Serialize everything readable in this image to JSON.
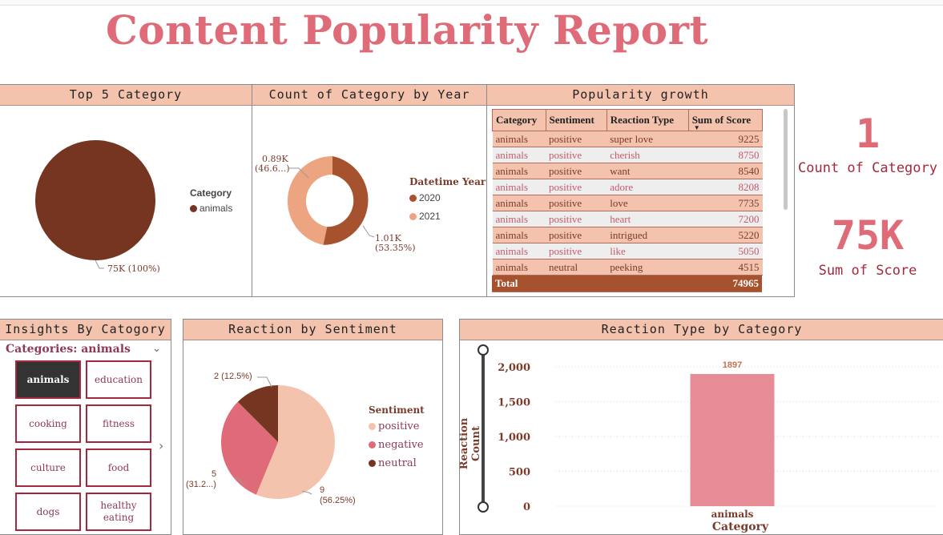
{
  "report": {
    "title": "Content Popularity Report"
  },
  "top5": {
    "header": "Top 5 Category",
    "legend_title": "Category",
    "legend_items": [
      {
        "label": "animals",
        "color": "#763521"
      }
    ],
    "slice_label": "75K (100%)"
  },
  "by_year": {
    "header": "Count of Category by Year",
    "legend_title": "Datetime Year",
    "legend_items": [
      {
        "label": "2020",
        "color": "#a6522e"
      },
      {
        "label": "2021",
        "color": "#eda581"
      }
    ],
    "label_2021_a": "0.89K",
    "label_2021_b": "(46.6...)",
    "label_2020_a": "1.01K",
    "label_2020_b": "(53.35%)"
  },
  "growth": {
    "header": "Popularity growth",
    "columns": [
      "Category",
      "Sentiment",
      "Reaction Type",
      "Sum of Score"
    ],
    "rows": [
      [
        "animals",
        "positive",
        "super love",
        "9225"
      ],
      [
        "animals",
        "positive",
        "cherish",
        "8750"
      ],
      [
        "animals",
        "positive",
        "want",
        "8540"
      ],
      [
        "animals",
        "positive",
        "adore",
        "8208"
      ],
      [
        "animals",
        "positive",
        "love",
        "7735"
      ],
      [
        "animals",
        "positive",
        "heart",
        "7200"
      ],
      [
        "animals",
        "positive",
        "intrigued",
        "5220"
      ],
      [
        "animals",
        "positive",
        "like",
        "5050"
      ],
      [
        "animals",
        "neutral",
        "peeking",
        "4515"
      ]
    ],
    "total_label": "Total",
    "total_value": "74965"
  },
  "kpis": {
    "count_value": "1",
    "count_label": "Count of Category",
    "sum_value": "75K",
    "sum_label": "Sum of Score"
  },
  "insights": {
    "header": "Insights By Catogory",
    "filter_label": "Categories: animals",
    "tiles": [
      "animals",
      "education",
      "cooking",
      "fitness",
      "culture",
      "food",
      "dogs",
      "healthy eating"
    ],
    "selected": "animals"
  },
  "sentiment": {
    "header": "Reaction by Sentiment",
    "legend_title": "Sentiment",
    "legend_items": [
      {
        "label": "positive",
        "color": "#f4c3ad"
      },
      {
        "label": "negative",
        "color": "#e06b78"
      },
      {
        "label": "neutral",
        "color": "#763521"
      }
    ],
    "label_neutral": "2 (12.5%)",
    "label_negative_a": "5",
    "label_negative_b": "(31.2...)",
    "label_positive_a": "9",
    "label_positive_b": "(56.25%)"
  },
  "reaction_type": {
    "header": "Reaction Type by Category"
  },
  "chart_data": [
    {
      "type": "pie",
      "title": "Top 5 Category",
      "labels": [
        "animals"
      ],
      "values": [
        75000
      ],
      "percent": [
        100
      ]
    },
    {
      "type": "pie",
      "title": "Count of Category by Year",
      "subtype": "donut",
      "labels": [
        "2020",
        "2021"
      ],
      "values": [
        1010,
        890
      ],
      "percent": [
        53.35,
        46.65
      ]
    },
    {
      "type": "pie",
      "title": "Reaction by Sentiment",
      "labels": [
        "positive",
        "negative",
        "neutral"
      ],
      "values": [
        9,
        5,
        2
      ],
      "percent": [
        56.25,
        31.25,
        12.5
      ]
    },
    {
      "type": "bar",
      "title": "Reaction Type by Category",
      "categories": [
        "animals"
      ],
      "values": [
        1897
      ],
      "xlabel": "Category",
      "ylabel": "Reaction Count",
      "ylim": [
        0,
        2000
      ],
      "yticks": [
        "0",
        "500",
        "1,000",
        "1,500",
        "2,000"
      ],
      "data_label": "1897",
      "bar_color": "#e78c96",
      "grid": true
    }
  ]
}
